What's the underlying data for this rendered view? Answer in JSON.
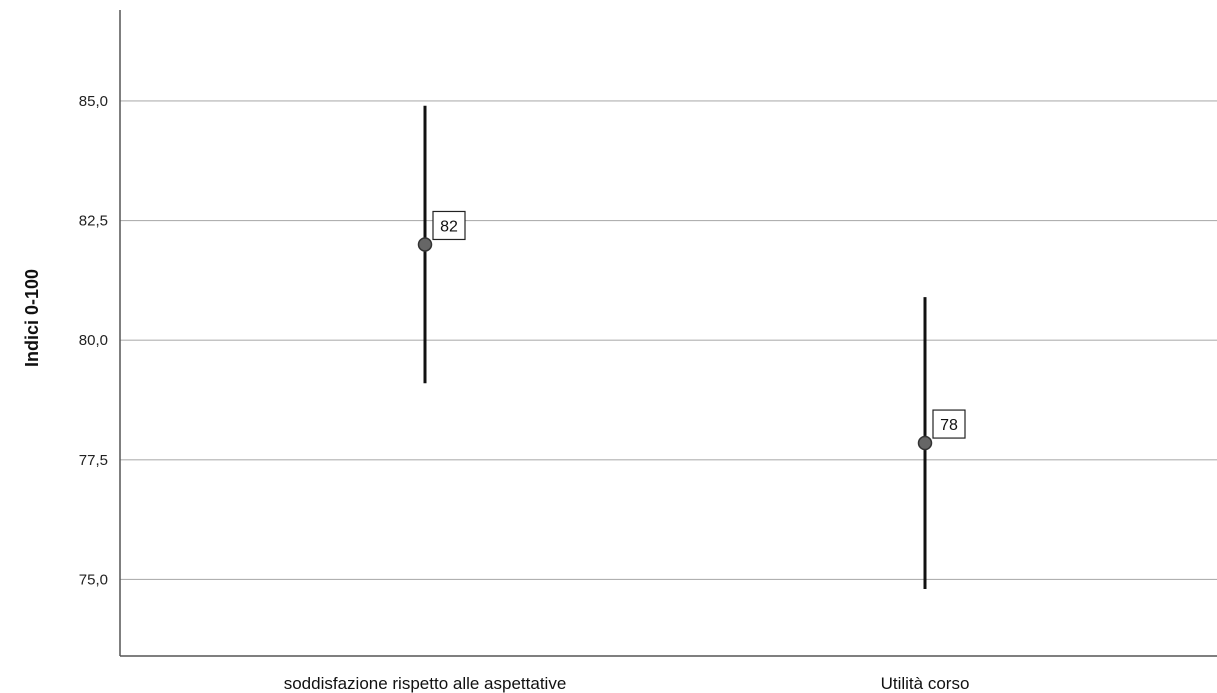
{
  "chart_data": {
    "type": "errorbar",
    "title": "",
    "xlabel": "",
    "ylabel": "Indici  0-100",
    "categories": [
      "soddisfazione rispetto alle aspettative",
      "Utilità corso"
    ],
    "series": [
      {
        "values": [
          82.0,
          77.85
        ],
        "lower": [
          79.1,
          74.8
        ],
        "upper": [
          84.9,
          80.9
        ],
        "data_labels": [
          "82",
          "78"
        ]
      }
    ],
    "ylim": [
      73.4,
      86.9
    ],
    "yticks": [
      75.0,
      77.5,
      80.0,
      82.5,
      85.0
    ],
    "ytick_labels": [
      "75,0",
      "77,5",
      "80,0",
      "82,5",
      "85,0"
    ],
    "grid": "horizontal",
    "colors": {
      "marker_fill": "#666666",
      "marker_stroke": "#333333",
      "errorbar": "#111111",
      "grid": "#b0b0b0",
      "axis": "#555555"
    }
  }
}
